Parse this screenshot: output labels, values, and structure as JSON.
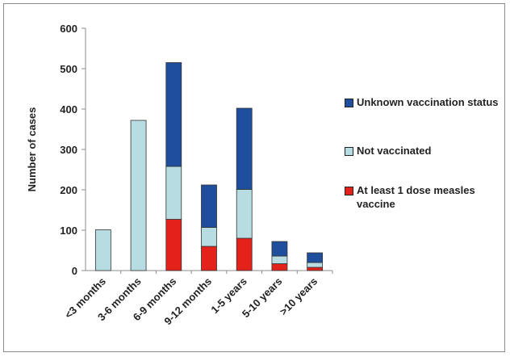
{
  "chart_data": {
    "type": "bar",
    "stacked": true,
    "categories": [
      "<3 months",
      "3-6 months",
      "6-9 months",
      "9-12 months",
      "1-5 years",
      "5-10 years",
      ">10 years"
    ],
    "series": [
      {
        "name": "At least 1 dose measles vaccine",
        "color": "#e3231b",
        "values": [
          0,
          0,
          127,
          60,
          80,
          17,
          8
        ]
      },
      {
        "name": "Not vaccinated",
        "color": "#b7dde3",
        "values": [
          101,
          372,
          131,
          47,
          121,
          19,
          12
        ]
      },
      {
        "name": "Unknown vaccination status",
        "color": "#1f4e9d",
        "values": [
          0,
          0,
          257,
          105,
          201,
          36,
          24
        ]
      }
    ],
    "legend_order": [
      "Unknown vaccination status",
      "Not vaccinated",
      "At least 1 dose measles vaccine"
    ],
    "title": "",
    "xlabel": "",
    "ylabel": "Number of cases",
    "ylim": [
      0,
      600
    ],
    "yticks": [
      0,
      100,
      200,
      300,
      400,
      500,
      600
    ],
    "grid": false,
    "legend_position": "right"
  }
}
